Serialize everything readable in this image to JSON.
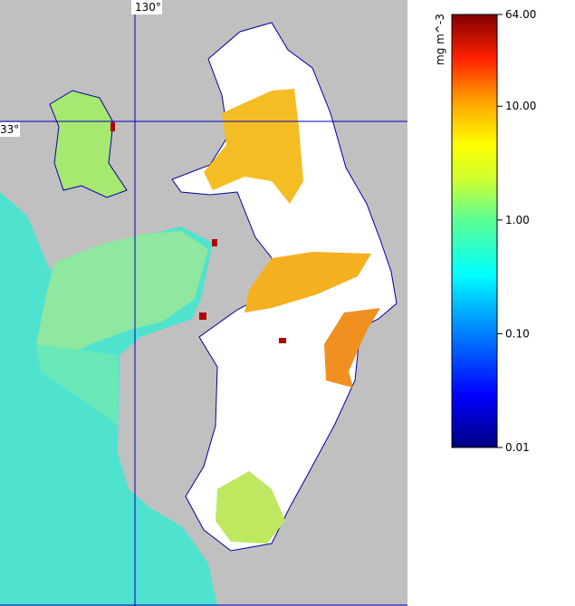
{
  "map": {
    "grid_labels": {
      "longitude": "130°",
      "latitude": "33°"
    },
    "colorbar": {
      "label": "mg m^-3",
      "log_scale": true,
      "ticks": [
        {
          "value": 64,
          "label": "64.00"
        },
        {
          "value": 10,
          "label": "10.00"
        },
        {
          "value": 1,
          "label": "1.00"
        },
        {
          "value": 0.1,
          "label": "0.10"
        },
        {
          "value": 0.01,
          "label": "0.01"
        }
      ]
    }
  }
}
